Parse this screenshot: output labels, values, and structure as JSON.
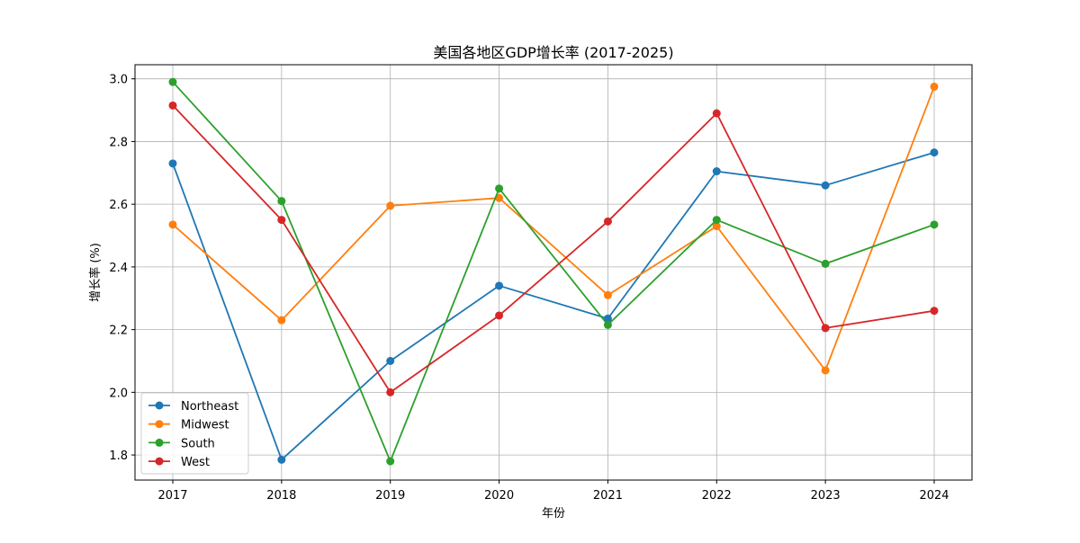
{
  "chart_data": {
    "type": "line",
    "title": "美国各地区GDP增长率 (2017-2025)",
    "xlabel": "年份",
    "ylabel": "增长率 (%)",
    "x": [
      "2017",
      "2018",
      "2019",
      "2020",
      "2021",
      "2022",
      "2023",
      "2024"
    ],
    "ylim": [
      1.72,
      3.045
    ],
    "yticks": [
      "1.8",
      "2.0",
      "2.2",
      "2.4",
      "2.6",
      "2.8",
      "3.0"
    ],
    "grid": true,
    "legend_position": "lower-left",
    "series": [
      {
        "name": "Northeast",
        "color": "#1f77b4",
        "values": [
          2.73,
          1.785,
          2.1,
          2.34,
          2.235,
          2.705,
          2.66,
          2.765
        ]
      },
      {
        "name": "Midwest",
        "color": "#ff7f0e",
        "values": [
          2.535,
          2.23,
          2.595,
          2.62,
          2.31,
          2.53,
          2.07,
          2.975
        ]
      },
      {
        "name": "South",
        "color": "#2ca02c",
        "values": [
          2.99,
          2.61,
          1.78,
          2.65,
          2.215,
          2.55,
          2.41,
          2.535
        ]
      },
      {
        "name": "West",
        "color": "#d62728",
        "values": [
          2.915,
          2.55,
          2.0,
          2.245,
          2.545,
          2.89,
          2.205,
          2.26
        ]
      }
    ]
  }
}
